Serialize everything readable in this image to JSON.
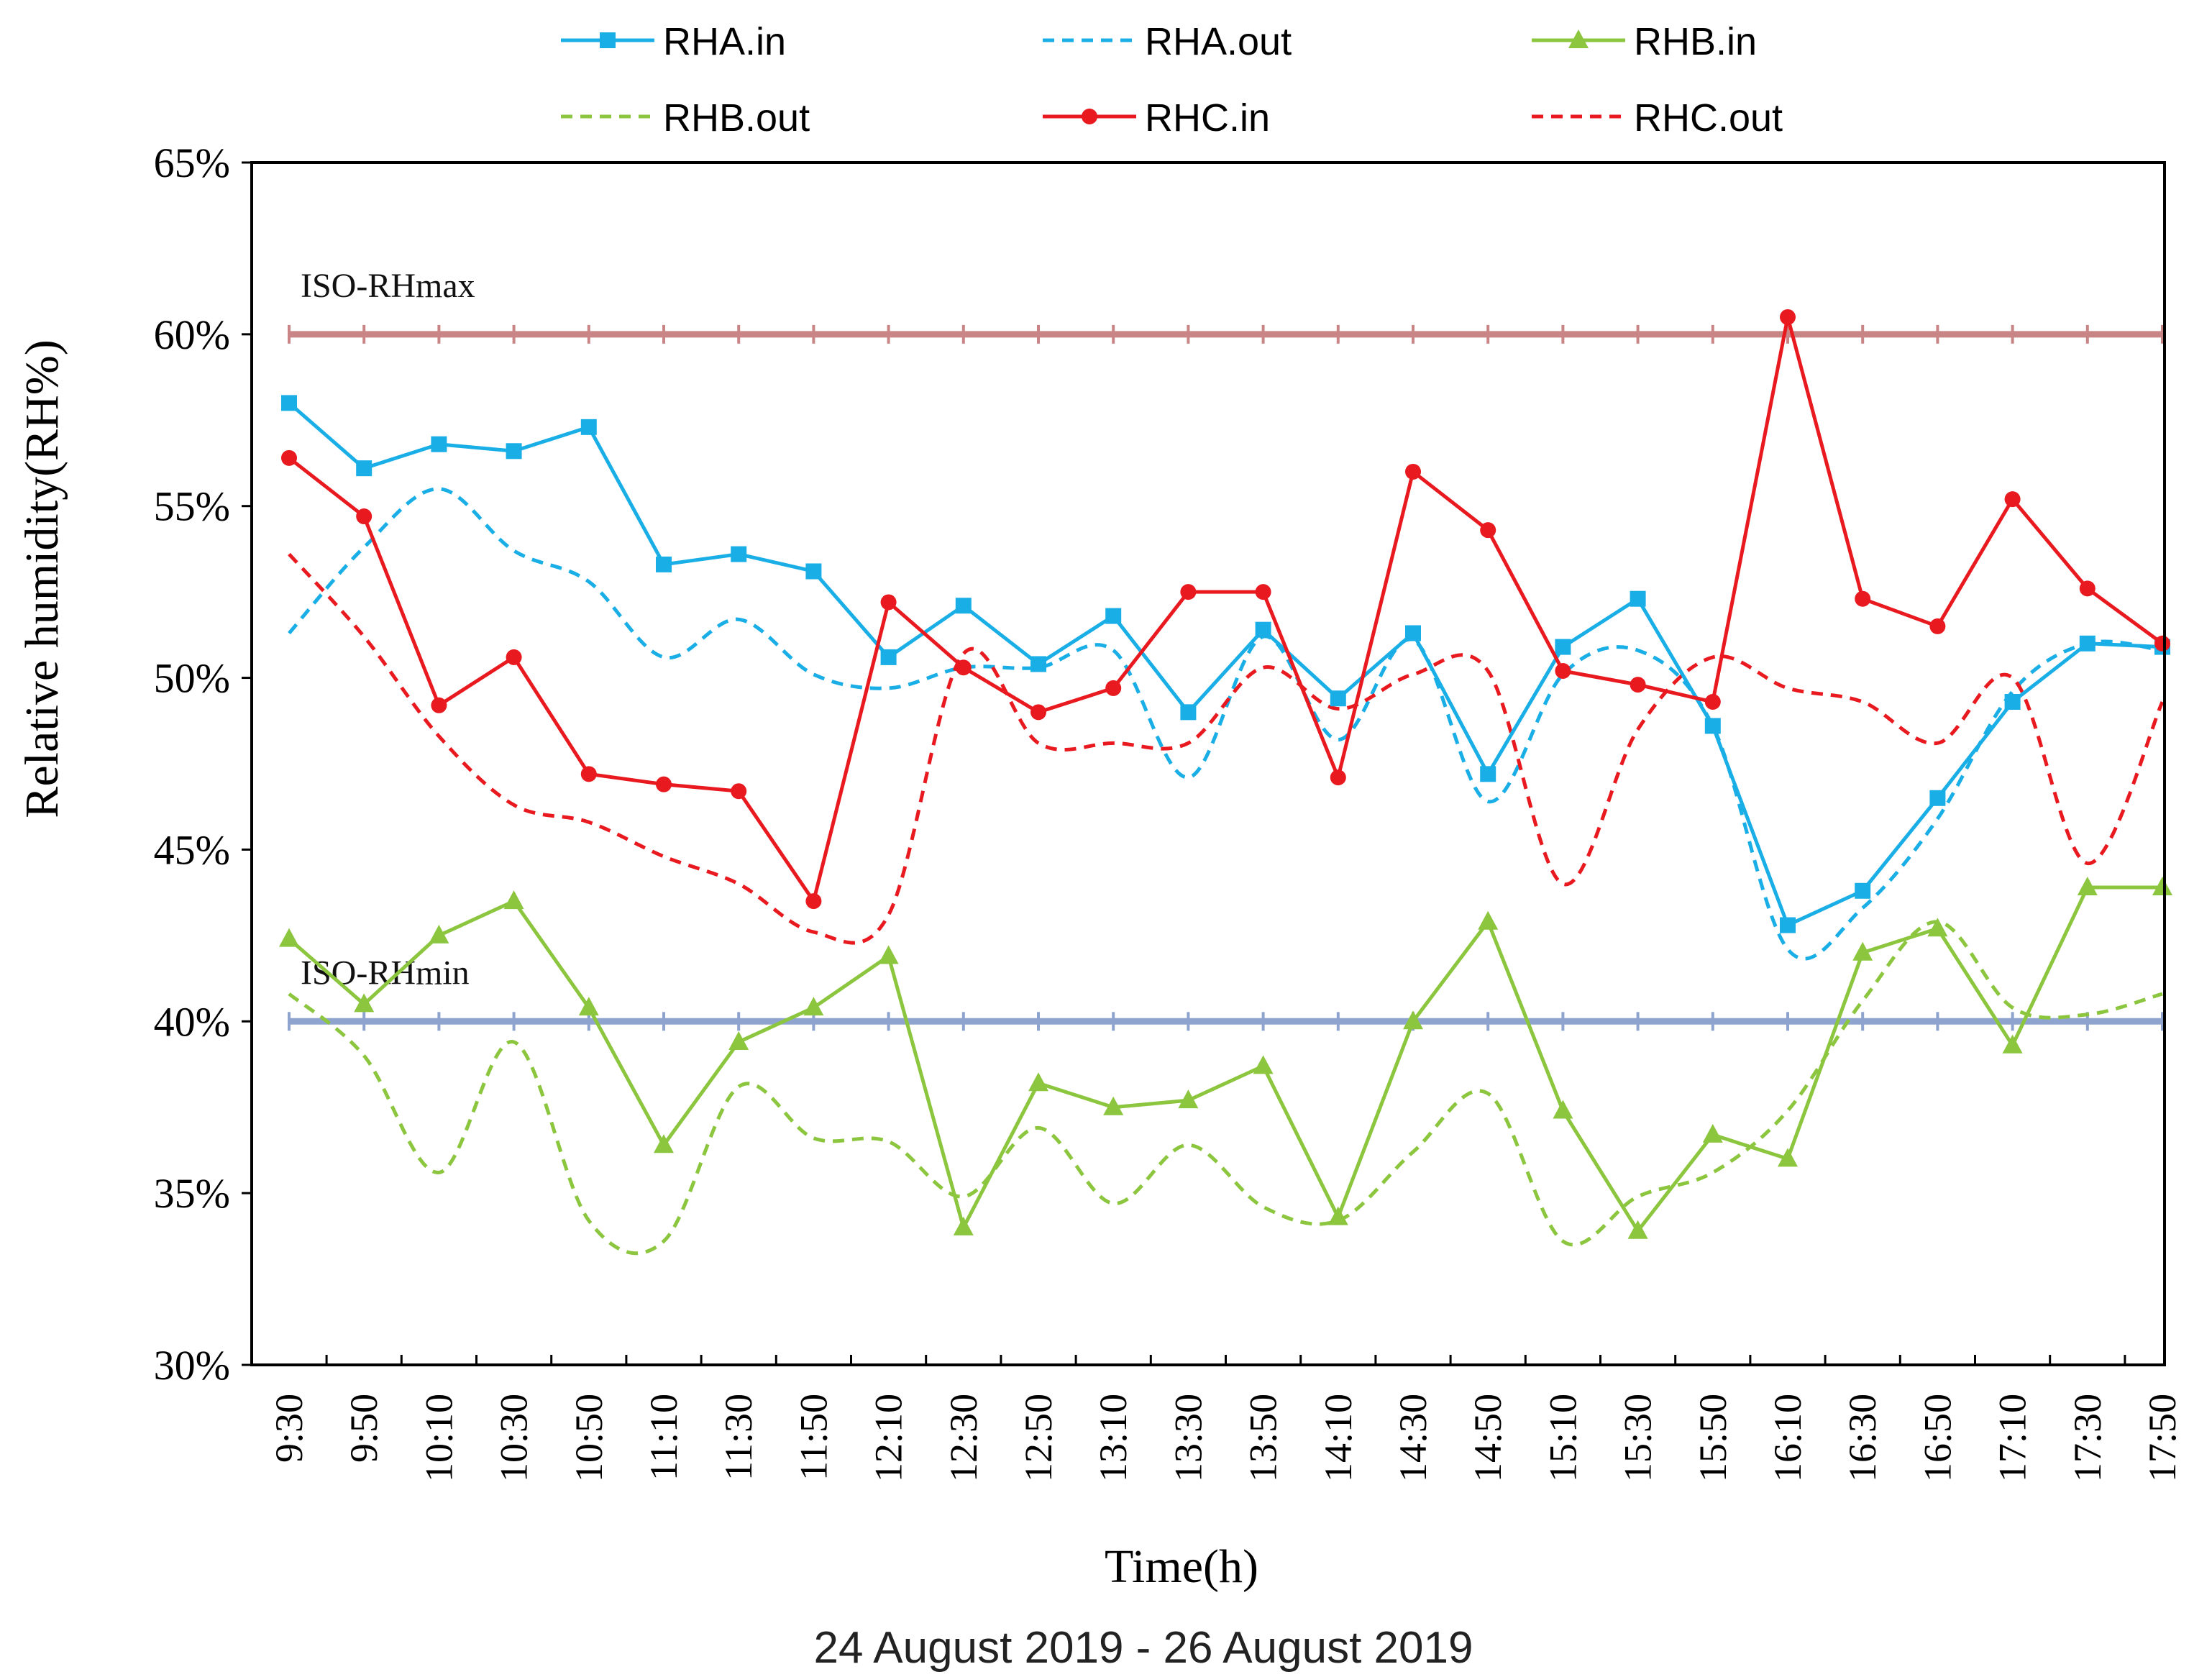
{
  "chart_data": {
    "type": "line",
    "xlabel": "Time(h)",
    "subtitle": "24 August 2019 - 26 August 2019",
    "ylabel": "Relative humidity(RH%)",
    "ylim": [
      30,
      65
    ],
    "y_ticks": [
      30,
      35,
      40,
      45,
      50,
      55,
      60,
      65
    ],
    "y_tick_format": "{v}%",
    "categories": [
      "9:30",
      "9:50",
      "10:10",
      "10:30",
      "10:50",
      "11:10",
      "11:30",
      "11:50",
      "12:10",
      "12:30",
      "12:50",
      "13:10",
      "13:30",
      "13:50",
      "14:10",
      "14:30",
      "14:50",
      "15:10",
      "15:30",
      "15:50",
      "16:10",
      "16:30",
      "16:50",
      "17:10",
      "17:30",
      "17:50"
    ],
    "legend_position": "top",
    "grid": false,
    "reference_lines": [
      {
        "label": "ISO-RHmax",
        "value": 60,
        "color": "#c98585"
      },
      {
        "label": "ISO-RHmin",
        "value": 40,
        "color": "#8ea4cf"
      }
    ],
    "series": [
      {
        "name": "RHA.in",
        "color": "#1aaee6",
        "dash": false,
        "marker": "square",
        "values": [
          58.0,
          56.1,
          56.8,
          56.6,
          57.3,
          53.3,
          53.6,
          53.1,
          50.6,
          52.1,
          50.4,
          51.8,
          49.0,
          51.4,
          49.4,
          51.3,
          47.2,
          50.9,
          52.3,
          48.6,
          42.8,
          43.8,
          46.5,
          49.3,
          51.0,
          50.9
        ]
      },
      {
        "name": "RHA.out",
        "color": "#1aaee6",
        "dash": true,
        "marker": "none",
        "values": [
          51.3,
          53.8,
          55.5,
          53.7,
          52.8,
          50.6,
          51.7,
          50.1,
          49.7,
          50.3,
          50.3,
          50.8,
          47.1,
          51.2,
          48.2,
          51.1,
          46.4,
          50.1,
          50.8,
          48.6,
          42.1,
          43.3,
          45.9,
          49.6,
          51.0,
          50.8
        ]
      },
      {
        "name": "RHB.in",
        "color": "#8cc63f",
        "dash": false,
        "marker": "triangle",
        "values": [
          42.4,
          40.5,
          42.5,
          43.5,
          40.4,
          36.4,
          39.4,
          40.4,
          41.9,
          34.0,
          38.2,
          37.5,
          37.7,
          38.7,
          34.3,
          40.0,
          42.9,
          37.4,
          33.9,
          36.7,
          36.0,
          42.0,
          42.7,
          39.3,
          43.9,
          43.9
        ]
      },
      {
        "name": "RHB.out",
        "color": "#8cc63f",
        "dash": true,
        "marker": "none",
        "values": [
          40.8,
          39.0,
          35.6,
          39.4,
          34.2,
          33.6,
          38.1,
          36.6,
          36.5,
          34.9,
          36.9,
          34.7,
          36.4,
          34.6,
          34.2,
          36.2,
          37.9,
          33.6,
          34.9,
          35.6,
          37.4,
          40.6,
          42.9,
          40.4,
          40.2,
          40.8
        ]
      },
      {
        "name": "RHC.in",
        "color": "#e8191f",
        "dash": false,
        "marker": "circle",
        "values": [
          56.4,
          54.7,
          49.2,
          50.6,
          47.2,
          46.9,
          46.7,
          43.5,
          52.2,
          50.3,
          49.0,
          49.7,
          52.5,
          52.5,
          47.1,
          56.0,
          54.3,
          50.2,
          49.8,
          49.3,
          60.5,
          52.3,
          51.5,
          55.2,
          52.6,
          51.0
        ]
      },
      {
        "name": "RHC.out",
        "color": "#e8191f",
        "dash": true,
        "marker": "none",
        "values": [
          53.6,
          51.2,
          48.3,
          46.3,
          45.8,
          44.8,
          44.0,
          42.6,
          43.1,
          50.7,
          48.1,
          48.1,
          48.1,
          50.3,
          49.1,
          50.1,
          50.2,
          44.0,
          48.5,
          50.6,
          49.7,
          49.3,
          48.1,
          50.0,
          44.6,
          49.3
        ]
      }
    ]
  }
}
